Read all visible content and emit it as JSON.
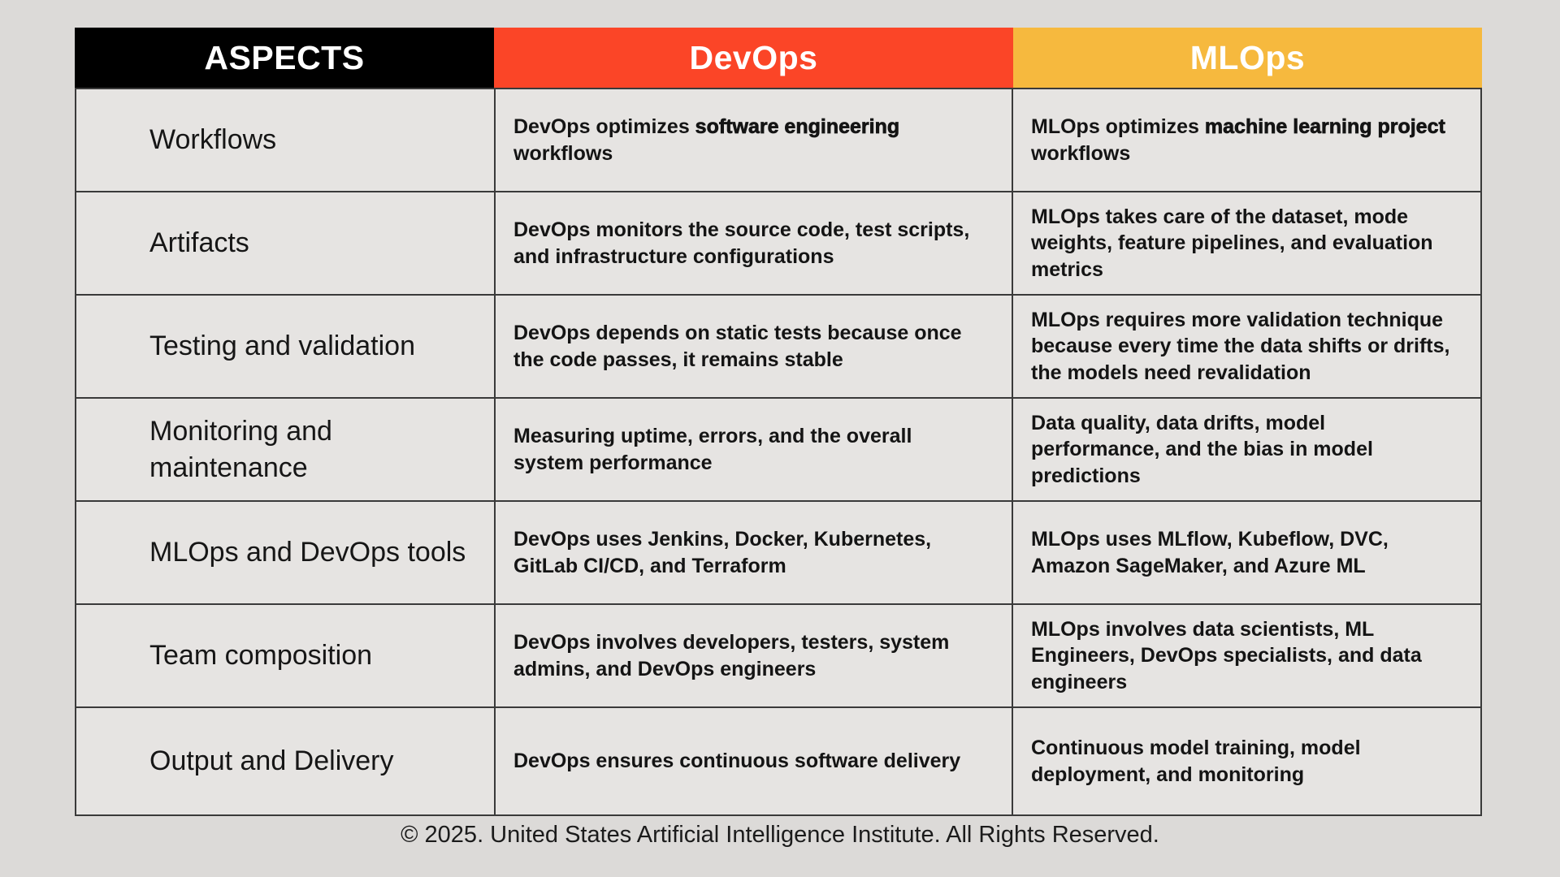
{
  "page": {
    "footer": "© 2025. United States Artificial Intelligence Institute. All Rights Reserved."
  },
  "colors": {
    "page_bg": "#dcdad8",
    "aspects_header_bg": "#000000",
    "devops_header_bg": "#fb4527",
    "mlops_header_bg": "#f6b93e",
    "header_text": "#ffffff",
    "cell_bg": "#e6e4e2",
    "border": "#3a3a3a"
  },
  "table": {
    "headers": [
      {
        "label": "ASPECTS"
      },
      {
        "label": "DevOps"
      },
      {
        "label": "MLOps"
      }
    ],
    "rows": [
      {
        "aspect": "Workflows",
        "devops": [
          {
            "text": "DevOps optimizes ",
            "bold": false
          },
          {
            "text": "software engineering",
            "bold": true
          },
          {
            "text": " workflows",
            "bold": false
          }
        ],
        "mlops": [
          {
            "text": "MLOps optimizes ",
            "bold": false
          },
          {
            "text": "machine learning project",
            "bold": true
          },
          {
            "text": " workflows",
            "bold": false
          }
        ]
      },
      {
        "aspect": "Artifacts",
        "devops": [
          {
            "text": "DevOps monitors the source code, test scripts, and infrastructure configurations",
            "bold": false
          }
        ],
        "mlops": [
          {
            "text": "MLOps takes care of the dataset, mode weights, feature pipelines, and evaluation metrics",
            "bold": false
          }
        ]
      },
      {
        "aspect": "Testing and validation",
        "devops": [
          {
            "text": "DevOps depends on static tests because once the code passes, it remains stable",
            "bold": false
          }
        ],
        "mlops": [
          {
            "text": "MLOps requires more validation technique because every time the data shifts or drifts, the models need revalidation",
            "bold": false
          }
        ]
      },
      {
        "aspect": "Monitoring and maintenance",
        "devops": [
          {
            "text": "Measuring uptime, errors, and the overall system performance",
            "bold": false
          }
        ],
        "mlops": [
          {
            "text": "Data quality, data drifts, model performance, and the bias in model predictions",
            "bold": false
          }
        ]
      },
      {
        "aspect": "MLOps and DevOps tools",
        "devops": [
          {
            "text": "DevOps uses Jenkins, Docker, Kubernetes, GitLab CI/CD, and Terraform",
            "bold": false
          }
        ],
        "mlops": [
          {
            "text": "MLOps uses MLflow, Kubeflow, DVC, Amazon SageMaker, and Azure ML",
            "bold": false
          }
        ]
      },
      {
        "aspect": "Team composition",
        "devops": [
          {
            "text": "DevOps involves developers, testers, system admins, and DevOps engineers",
            "bold": false
          }
        ],
        "mlops": [
          {
            "text": "MLOps involves data scientists, ML Engineers, DevOps specialists, and data engineers",
            "bold": false
          }
        ]
      },
      {
        "aspect": "Output and Delivery",
        "devops": [
          {
            "text": "DevOps ensures continuous software delivery",
            "bold": false
          }
        ],
        "mlops": [
          {
            "text": "Continuous model training, model deployment, and monitoring",
            "bold": false
          }
        ]
      }
    ]
  }
}
